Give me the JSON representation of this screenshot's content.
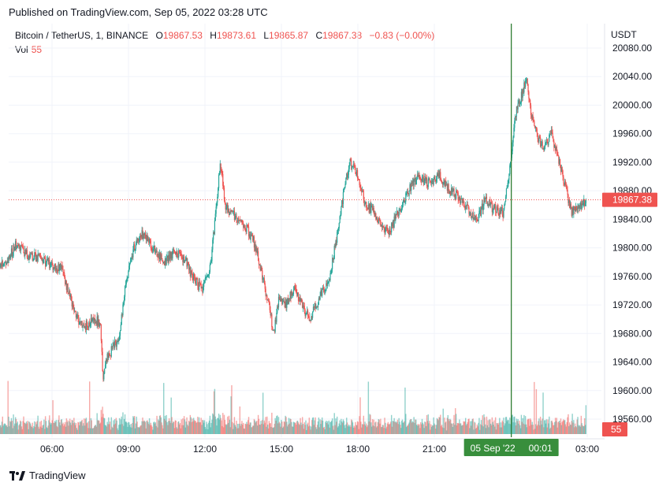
{
  "published": "Published on TradingView.com, Sep 05, 2022 03:28 UTC",
  "symbol": "Bitcoin / TetherUS, 1, BINANCE",
  "ohlc": {
    "o_label": "O",
    "o": "19867.53",
    "h_label": "H",
    "h": "19873.61",
    "l_label": "L",
    "l": "19865.87",
    "c_label": "C",
    "c": "19867.38",
    "change": "−0.83 (−0.00%)"
  },
  "volume": {
    "label": "Vol",
    "value": "55"
  },
  "currency": "USDT",
  "brand": "TradingView",
  "colors": {
    "up": "#26a69a",
    "down": "#ef5350",
    "crosshair": "#2e7d32",
    "grid": "#f0f3fa"
  },
  "chart_data": {
    "type": "candlestick",
    "timeframe": "1m",
    "y_ticks": [
      "20080.00",
      "20040.00",
      "20000.00",
      "19960.00",
      "19920.00",
      "19880.00",
      "19840.00",
      "19800.00",
      "19760.00",
      "19720.00",
      "19680.00",
      "19640.00",
      "19600.00",
      "19560.00"
    ],
    "y_range": [
      19546,
      20090
    ],
    "x_ticks": [
      "06:00",
      "09:00",
      "12:00",
      "15:00",
      "18:00",
      "21:00",
      "03:00"
    ],
    "x_range_hours": [
      3.9,
      26.95
    ],
    "last_price": "19867.38",
    "last_volume": "55",
    "crosshair_label": {
      "date": "05 Sep '22",
      "time": "00:01"
    },
    "crosshair_hour": 24.02,
    "price_path": [
      [
        3.9,
        19775
      ],
      [
        4.3,
        19785
      ],
      [
        4.6,
        19805
      ],
      [
        5.0,
        19790
      ],
      [
        5.5,
        19785
      ],
      [
        6.0,
        19775
      ],
      [
        6.4,
        19770
      ],
      [
        6.7,
        19730
      ],
      [
        7.0,
        19700
      ],
      [
        7.3,
        19690
      ],
      [
        7.6,
        19700
      ],
      [
        7.9,
        19695
      ],
      [
        8.0,
        19620
      ],
      [
        8.1,
        19640
      ],
      [
        8.4,
        19660
      ],
      [
        8.6,
        19670
      ],
      [
        8.9,
        19750
      ],
      [
        9.2,
        19800
      ],
      [
        9.5,
        19820
      ],
      [
        10.0,
        19800
      ],
      [
        10.4,
        19780
      ],
      [
        10.8,
        19795
      ],
      [
        11.2,
        19785
      ],
      [
        11.5,
        19760
      ],
      [
        11.9,
        19740
      ],
      [
        12.2,
        19770
      ],
      [
        12.4,
        19840
      ],
      [
        12.6,
        19920
      ],
      [
        12.8,
        19860
      ],
      [
        13.0,
        19850
      ],
      [
        13.3,
        19840
      ],
      [
        13.6,
        19830
      ],
      [
        13.9,
        19810
      ],
      [
        14.2,
        19770
      ],
      [
        14.5,
        19720
      ],
      [
        14.7,
        19680
      ],
      [
        14.9,
        19730
      ],
      [
        15.2,
        19720
      ],
      [
        15.5,
        19745
      ],
      [
        15.8,
        19720
      ],
      [
        16.1,
        19700
      ],
      [
        16.5,
        19730
      ],
      [
        16.9,
        19760
      ],
      [
        17.2,
        19820
      ],
      [
        17.5,
        19890
      ],
      [
        17.7,
        19920
      ],
      [
        18.0,
        19900
      ],
      [
        18.3,
        19860
      ],
      [
        18.6,
        19850
      ],
      [
        18.9,
        19830
      ],
      [
        19.2,
        19820
      ],
      [
        19.6,
        19850
      ],
      [
        20.0,
        19880
      ],
      [
        20.4,
        19900
      ],
      [
        20.8,
        19890
      ],
      [
        21.2,
        19900
      ],
      [
        21.6,
        19880
      ],
      [
        22.0,
        19870
      ],
      [
        22.4,
        19850
      ],
      [
        22.7,
        19840
      ],
      [
        23.0,
        19870
      ],
      [
        23.3,
        19855
      ],
      [
        23.7,
        19850
      ],
      [
        24.0,
        19920
      ],
      [
        24.2,
        19990
      ],
      [
        24.4,
        20010
      ],
      [
        24.6,
        20040
      ],
      [
        24.8,
        19990
      ],
      [
        25.0,
        19960
      ],
      [
        25.3,
        19940
      ],
      [
        25.6,
        19960
      ],
      [
        25.9,
        19920
      ],
      [
        26.1,
        19890
      ],
      [
        26.4,
        19850
      ],
      [
        26.7,
        19855
      ],
      [
        26.95,
        19867.38
      ]
    ],
    "volume_scale_max": 150
  }
}
